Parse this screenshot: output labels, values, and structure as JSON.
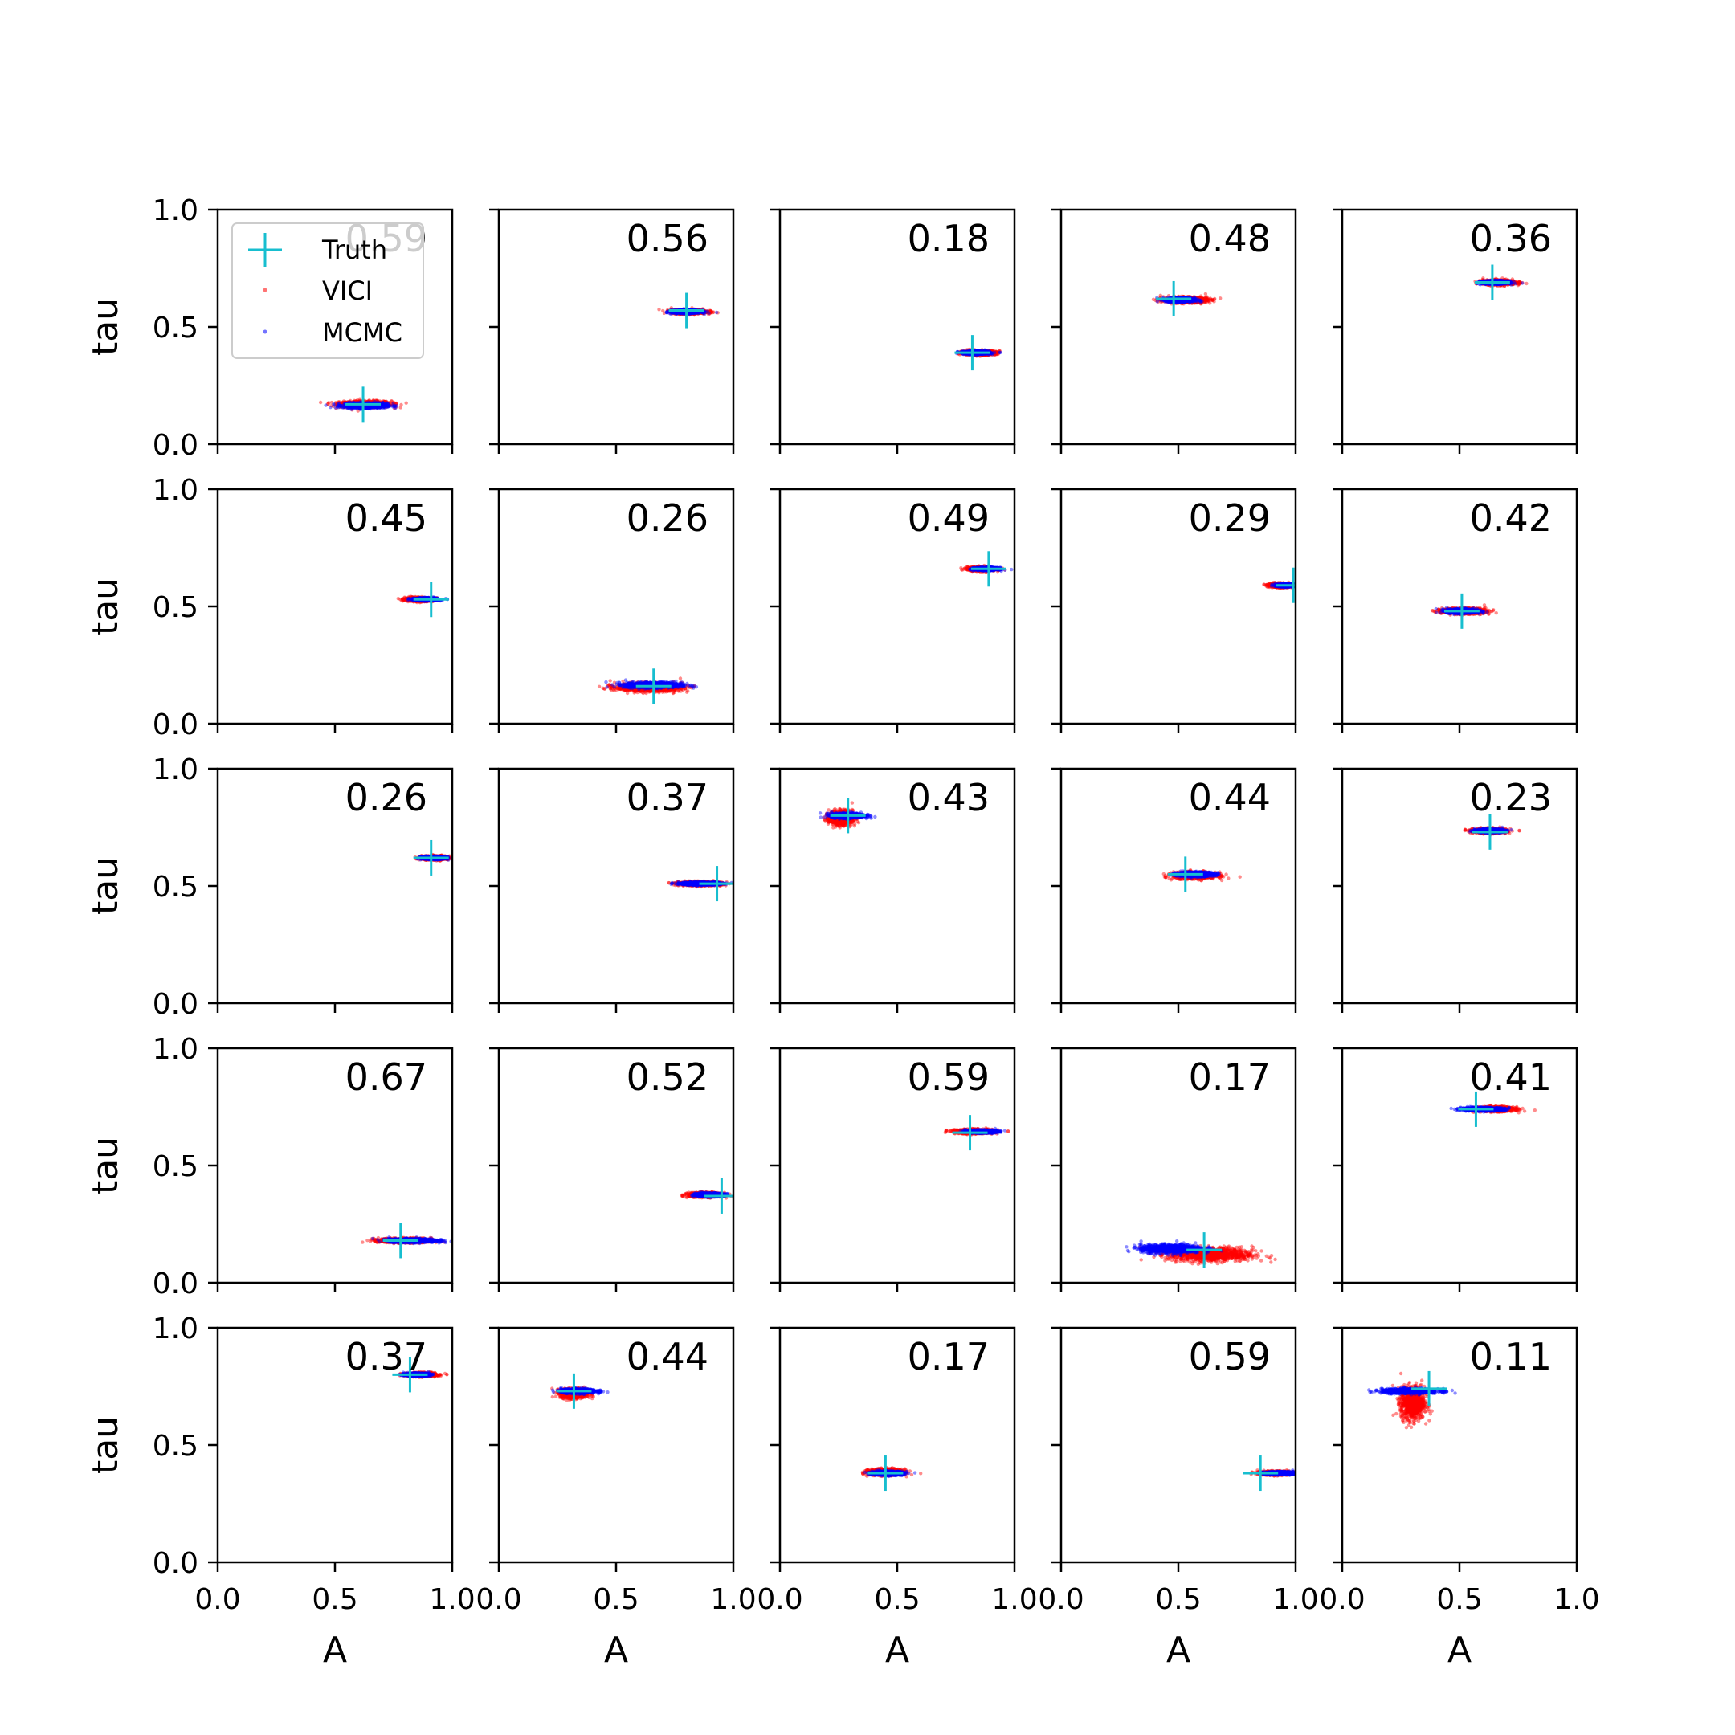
{
  "figure": {
    "x_label": "A",
    "y_label": "tau",
    "legend_title_truth": "Truth",
    "legend_title_vici": "VICI",
    "legend_title_mcmc": "MCMC"
  },
  "colors": {
    "vici": "#ff0000",
    "mcmc": "#0000ff",
    "truth": "#17becf",
    "axes": "#000000",
    "background": "#ffffff"
  },
  "chart_data": {
    "type": "scatter",
    "layout": "5x5 grid of panels",
    "xlabel": "A",
    "ylabel": "tau",
    "xlim": [
      0.0,
      1.0
    ],
    "ylim": [
      0.0,
      1.0
    ],
    "xticks": [
      "0.0",
      "0.5",
      "1.0"
    ],
    "yticks": [
      "0.0",
      "0.5",
      "1.0"
    ],
    "grid": false,
    "legend": {
      "position": "top-left of first panel",
      "entries": [
        "Truth",
        "VICI",
        "MCMC"
      ]
    },
    "series": [
      {
        "name": "Truth",
        "marker": "plus"
      },
      {
        "name": "VICI",
        "marker": "dot"
      },
      {
        "name": "MCMC",
        "marker": "dot"
      }
    ],
    "panels": [
      {
        "label": "0.59",
        "truth": [
          0.62,
          0.17
        ],
        "vici": {
          "center": [
            0.63,
            0.17
          ],
          "spread": [
            0.11,
            0.014
          ]
        },
        "mcmc": {
          "center": [
            0.63,
            0.165
          ],
          "spread": [
            0.09,
            0.011
          ]
        }
      },
      {
        "label": "0.56",
        "truth": [
          0.8,
          0.57
        ],
        "vici": {
          "center": [
            0.81,
            0.565
          ],
          "spread": [
            0.075,
            0.009
          ]
        },
        "mcmc": {
          "center": [
            0.8,
            0.565
          ],
          "spread": [
            0.06,
            0.007
          ]
        }
      },
      {
        "label": "0.18",
        "truth": [
          0.82,
          0.39
        ],
        "vici": {
          "center": [
            0.85,
            0.39
          ],
          "spread": [
            0.07,
            0.009
          ]
        },
        "mcmc": {
          "center": [
            0.84,
            0.39
          ],
          "spread": [
            0.055,
            0.007
          ]
        }
      },
      {
        "label": "0.48",
        "truth": [
          0.48,
          0.62
        ],
        "vici": {
          "center": [
            0.53,
            0.615
          ],
          "spread": [
            0.09,
            0.012
          ]
        },
        "mcmc": {
          "center": [
            0.51,
            0.615
          ],
          "spread": [
            0.06,
            0.009
          ]
        }
      },
      {
        "label": "0.36",
        "truth": [
          0.64,
          0.69
        ],
        "vici": {
          "center": [
            0.67,
            0.69
          ],
          "spread": [
            0.07,
            0.01
          ]
        },
        "mcmc": {
          "center": [
            0.65,
            0.69
          ],
          "spread": [
            0.055,
            0.007
          ]
        }
      },
      {
        "label": "0.45",
        "truth": [
          0.91,
          0.53
        ],
        "vici": {
          "center": [
            0.86,
            0.53
          ],
          "spread": [
            0.06,
            0.008
          ]
        },
        "mcmc": {
          "center": [
            0.89,
            0.53
          ],
          "spread": [
            0.05,
            0.006
          ]
        }
      },
      {
        "label": "0.26",
        "truth": [
          0.66,
          0.16
        ],
        "vici": {
          "center": [
            0.64,
            0.155
          ],
          "spread": [
            0.14,
            0.018
          ]
        },
        "mcmc": {
          "center": [
            0.66,
            0.165
          ],
          "spread": [
            0.12,
            0.012
          ]
        }
      },
      {
        "label": "0.49",
        "truth": [
          0.89,
          0.66
        ],
        "vici": {
          "center": [
            0.86,
            0.66
          ],
          "spread": [
            0.06,
            0.008
          ]
        },
        "mcmc": {
          "center": [
            0.88,
            0.66
          ],
          "spread": [
            0.05,
            0.006
          ]
        }
      },
      {
        "label": "0.29",
        "truth": [
          0.99,
          0.59
        ],
        "vici": {
          "center": [
            0.94,
            0.59
          ],
          "spread": [
            0.05,
            0.008
          ]
        },
        "mcmc": {
          "center": [
            0.96,
            0.59
          ],
          "spread": [
            0.04,
            0.006
          ]
        }
      },
      {
        "label": "0.42",
        "truth": [
          0.51,
          0.48
        ],
        "vici": {
          "center": [
            0.52,
            0.48
          ],
          "spread": [
            0.09,
            0.012
          ]
        },
        "mcmc": {
          "center": [
            0.51,
            0.48
          ],
          "spread": [
            0.065,
            0.009
          ]
        }
      },
      {
        "label": "0.26",
        "truth": [
          0.91,
          0.62
        ],
        "vici": {
          "center": [
            0.93,
            0.62
          ],
          "spread": [
            0.06,
            0.008
          ]
        },
        "mcmc": {
          "center": [
            0.92,
            0.62
          ],
          "spread": [
            0.05,
            0.006
          ]
        }
      },
      {
        "label": "0.37",
        "truth": [
          0.93,
          0.51
        ],
        "vici": {
          "center": [
            0.86,
            0.51
          ],
          "spread": [
            0.09,
            0.008
          ]
        },
        "mcmc": {
          "center": [
            0.86,
            0.51
          ],
          "spread": [
            0.08,
            0.006
          ]
        }
      },
      {
        "label": "0.43",
        "truth": [
          0.29,
          0.8
        ],
        "vici": {
          "center": [
            0.26,
            0.79
          ],
          "spread": [
            0.05,
            0.03
          ]
        },
        "mcmc": {
          "center": [
            0.29,
            0.8
          ],
          "spread": [
            0.07,
            0.01
          ]
        }
      },
      {
        "label": "0.44",
        "truth": [
          0.53,
          0.55
        ],
        "vici": {
          "center": [
            0.57,
            0.545
          ],
          "spread": [
            0.09,
            0.014
          ]
        },
        "mcmc": {
          "center": [
            0.57,
            0.55
          ],
          "spread": [
            0.08,
            0.009
          ]
        }
      },
      {
        "label": "0.23",
        "truth": [
          0.63,
          0.73
        ],
        "vici": {
          "center": [
            0.63,
            0.735
          ],
          "spread": [
            0.07,
            0.01
          ]
        },
        "mcmc": {
          "center": [
            0.63,
            0.735
          ],
          "spread": [
            0.055,
            0.007
          ]
        }
      },
      {
        "label": "0.67",
        "truth": [
          0.78,
          0.18
        ],
        "vici": {
          "center": [
            0.8,
            0.18
          ],
          "spread": [
            0.11,
            0.01
          ]
        },
        "mcmc": {
          "center": [
            0.83,
            0.18
          ],
          "spread": [
            0.1,
            0.008
          ]
        }
      },
      {
        "label": "0.52",
        "truth": [
          0.95,
          0.37
        ],
        "vici": {
          "center": [
            0.88,
            0.375
          ],
          "spread": [
            0.07,
            0.009
          ]
        },
        "mcmc": {
          "center": [
            0.9,
            0.375
          ],
          "spread": [
            0.06,
            0.007
          ]
        }
      },
      {
        "label": "0.59",
        "truth": [
          0.81,
          0.64
        ],
        "vici": {
          "center": [
            0.83,
            0.645
          ],
          "spread": [
            0.08,
            0.009
          ]
        },
        "mcmc": {
          "center": [
            0.86,
            0.645
          ],
          "spread": [
            0.06,
            0.006
          ]
        }
      },
      {
        "label": "0.17",
        "truth": [
          0.61,
          0.14
        ],
        "vici": {
          "center": [
            0.64,
            0.12
          ],
          "spread": [
            0.18,
            0.03
          ]
        },
        "mcmc": {
          "center": [
            0.47,
            0.145
          ],
          "spread": [
            0.13,
            0.018
          ]
        }
      },
      {
        "label": "0.41",
        "truth": [
          0.57,
          0.74
        ],
        "vici": {
          "center": [
            0.65,
            0.74
          ],
          "spread": [
            0.08,
            0.01
          ]
        },
        "mcmc": {
          "center": [
            0.6,
            0.74
          ],
          "spread": [
            0.09,
            0.007
          ]
        }
      },
      {
        "label": "0.37",
        "truth": [
          0.82,
          0.8
        ],
        "vici": {
          "center": [
            0.87,
            0.8
          ],
          "spread": [
            0.06,
            0.008
          ]
        },
        "mcmc": {
          "center": [
            0.85,
            0.8
          ],
          "spread": [
            0.05,
            0.006
          ]
        }
      },
      {
        "label": "0.44",
        "truth": [
          0.32,
          0.73
        ],
        "vici": {
          "center": [
            0.32,
            0.72
          ],
          "spread": [
            0.055,
            0.02
          ]
        },
        "mcmc": {
          "center": [
            0.34,
            0.73
          ],
          "spread": [
            0.075,
            0.009
          ]
        }
      },
      {
        "label": "0.17",
        "truth": [
          0.45,
          0.38
        ],
        "vici": {
          "center": [
            0.45,
            0.385
          ],
          "spread": [
            0.07,
            0.013
          ]
        },
        "mcmc": {
          "center": [
            0.46,
            0.38
          ],
          "spread": [
            0.065,
            0.008
          ]
        }
      },
      {
        "label": "0.59",
        "truth": [
          0.85,
          0.38
        ],
        "vici": {
          "center": [
            0.92,
            0.38
          ],
          "spread": [
            0.07,
            0.008
          ]
        },
        "mcmc": {
          "center": [
            0.93,
            0.38
          ],
          "spread": [
            0.06,
            0.006
          ]
        }
      },
      {
        "label": "0.11",
        "truth": [
          0.37,
          0.74
        ],
        "vici": {
          "center": [
            0.3,
            0.68
          ],
          "spread": [
            0.05,
            0.07
          ]
        },
        "mcmc": {
          "center": [
            0.29,
            0.73
          ],
          "spread": [
            0.12,
            0.01
          ]
        }
      }
    ]
  }
}
